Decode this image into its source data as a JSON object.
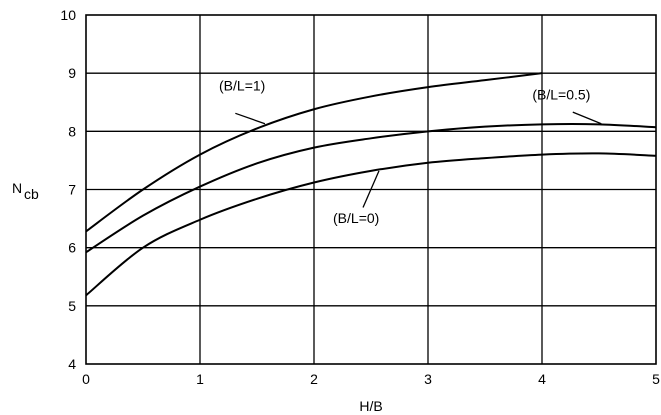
{
  "chart_data": {
    "type": "line",
    "xlabel": "H/B",
    "ylabel": {
      "main": "N",
      "sub": "cb"
    },
    "xlim": [
      0,
      5
    ],
    "ylim": [
      4,
      10
    ],
    "xticks": [
      0,
      1,
      2,
      3,
      4,
      5
    ],
    "yticks": [
      4,
      5,
      6,
      7,
      8,
      9,
      10
    ],
    "grid": true,
    "series": [
      {
        "name": "(B/L=1)",
        "x": [
          0,
          0.5,
          1,
          1.5,
          2,
          2.5,
          3,
          3.5,
          4
        ],
        "y": [
          6.28,
          7.0,
          7.6,
          8.05,
          8.38,
          8.6,
          8.76,
          8.88,
          9.0
        ]
      },
      {
        "name": "(B/L=0.5)",
        "x": [
          0,
          0.5,
          1,
          1.5,
          2,
          2.5,
          3,
          3.5,
          4,
          4.5,
          5
        ],
        "y": [
          5.92,
          6.55,
          7.05,
          7.45,
          7.72,
          7.88,
          8.0,
          8.08,
          8.12,
          8.12,
          8.07
        ]
      },
      {
        "name": "(B/L=0)",
        "x": [
          0,
          0.5,
          1,
          1.5,
          2,
          2.5,
          3,
          3.5,
          4,
          4.5,
          5
        ],
        "y": [
          5.18,
          6.0,
          6.48,
          6.84,
          7.12,
          7.32,
          7.46,
          7.54,
          7.6,
          7.62,
          7.58
        ]
      }
    ],
    "annotations": [
      {
        "text": "(B/L=1)",
        "series": 0,
        "label_at": [
          1.37,
          8.7
        ],
        "leader_from": [
          1.31,
          8.31
        ],
        "leader_to": [
          1.57,
          8.13
        ]
      },
      {
        "text": "(B/L=0.5)",
        "series": 1,
        "label_at": [
          4.17,
          8.55
        ],
        "leader_from": [
          4.27,
          8.33
        ],
        "leader_to": [
          4.52,
          8.13
        ]
      },
      {
        "text": "(B/L=0)",
        "series": 2,
        "label_at": [
          2.37,
          6.42
        ],
        "leader_from": [
          2.43,
          6.69
        ],
        "leader_to": [
          2.57,
          7.32
        ]
      }
    ]
  }
}
